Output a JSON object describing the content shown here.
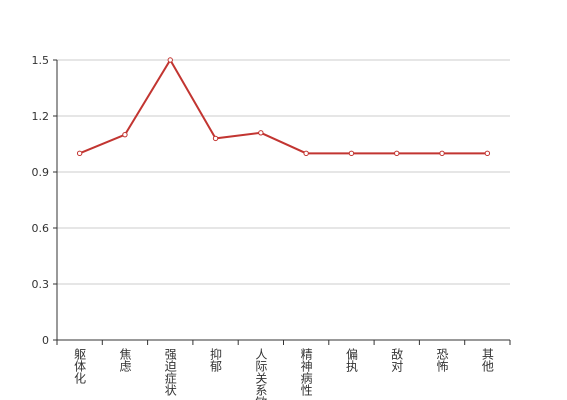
{
  "chart_data": {
    "type": "line",
    "categories": [
      "躯体化",
      "焦虑",
      "强迫症状",
      "抑郁",
      "人际关系敏感",
      "精神病性",
      "偏执",
      "敌对",
      "恐怖",
      "其他"
    ],
    "values": [
      1.0,
      1.1,
      1.5,
      1.08,
      1.11,
      1.0,
      1.0,
      1.0,
      1.0,
      1.0
    ],
    "color": "#c23531",
    "ylim": [
      0,
      1.5
    ],
    "yticks": [
      0,
      0.3,
      0.6,
      0.9,
      1.2,
      1.5
    ],
    "grid": true
  }
}
